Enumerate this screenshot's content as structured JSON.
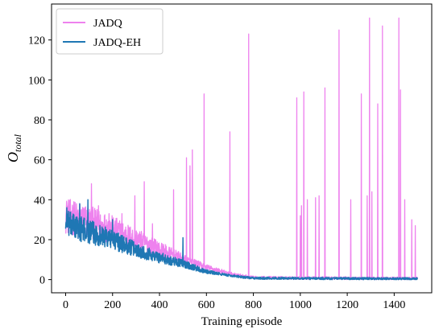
{
  "chart_data": {
    "type": "line",
    "title": "",
    "xlabel": "Training episode",
    "ylabel": "O_total",
    "ylabel_main": "O",
    "ylabel_sub": "total",
    "xlim": [
      -60,
      1560
    ],
    "ylim": [
      -6.6,
      138
    ],
    "xticks": [
      0,
      200,
      400,
      600,
      800,
      1000,
      1200,
      1400
    ],
    "yticks": [
      0,
      20,
      40,
      60,
      80,
      100,
      120
    ],
    "xtick_labels": [
      "0",
      "200",
      "400",
      "600",
      "800",
      "1000",
      "1200",
      "1400"
    ],
    "ytick_labels": [
      "0",
      "20",
      "40",
      "60",
      "80",
      "100",
      "120"
    ],
    "legend_position": "upper-left",
    "grid": false,
    "series": [
      {
        "name": "JADQ",
        "color": "#ee82ee",
        "episodes": 1500,
        "trend": [
          [
            0,
            32
          ],
          [
            100,
            29
          ],
          [
            200,
            25
          ],
          [
            300,
            20
          ],
          [
            400,
            15
          ],
          [
            500,
            10
          ],
          [
            600,
            6
          ],
          [
            700,
            3
          ],
          [
            800,
            1
          ],
          [
            1500,
            0.5
          ]
        ],
        "noise": 9,
        "spikes": [
          [
            5,
            38
          ],
          [
            30,
            36
          ],
          [
            60,
            38
          ],
          [
            110,
            48
          ],
          [
            140,
            37
          ],
          [
            185,
            33
          ],
          [
            240,
            33
          ],
          [
            295,
            42
          ],
          [
            335,
            49
          ],
          [
            370,
            28
          ],
          [
            460,
            45
          ],
          [
            515,
            61
          ],
          [
            530,
            57
          ],
          [
            540,
            65
          ],
          [
            590,
            93
          ],
          [
            700,
            74
          ],
          [
            780,
            123
          ],
          [
            985,
            91
          ],
          [
            1000,
            32
          ],
          [
            1005,
            37
          ],
          [
            1015,
            94
          ],
          [
            1030,
            40
          ],
          [
            1065,
            41
          ],
          [
            1080,
            42
          ],
          [
            1105,
            96
          ],
          [
            1165,
            125
          ],
          [
            1215,
            40
          ],
          [
            1260,
            93
          ],
          [
            1285,
            42
          ],
          [
            1295,
            131
          ],
          [
            1305,
            44
          ],
          [
            1330,
            88
          ],
          [
            1350,
            127
          ],
          [
            1420,
            131
          ],
          [
            1427,
            95
          ],
          [
            1445,
            40
          ],
          [
            1475,
            30
          ],
          [
            1490,
            27
          ]
        ]
      },
      {
        "name": "JADQ-EH",
        "color": "#1f77b4",
        "episodes": 1500,
        "trend": [
          [
            0,
            28
          ],
          [
            100,
            24
          ],
          [
            200,
            20
          ],
          [
            300,
            15
          ],
          [
            400,
            11
          ],
          [
            500,
            8
          ],
          [
            600,
            4
          ],
          [
            700,
            2
          ],
          [
            800,
            0.7
          ],
          [
            1500,
            0.4
          ]
        ],
        "noise": 7,
        "spikes": [
          [
            5,
            36
          ],
          [
            60,
            38
          ],
          [
            95,
            40
          ],
          [
            200,
            30
          ],
          [
            500,
            21
          ]
        ]
      }
    ]
  }
}
